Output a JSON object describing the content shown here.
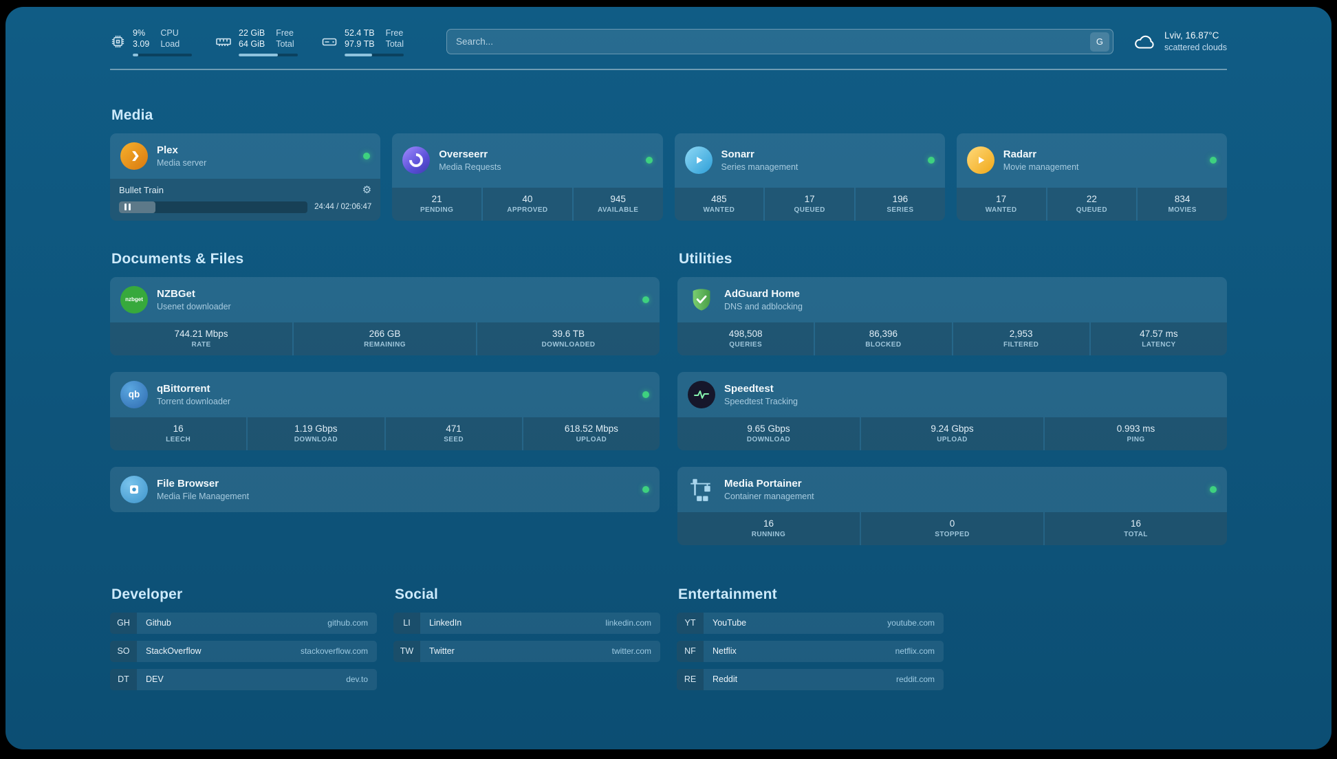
{
  "infobar": {
    "cpu": {
      "value": "9%",
      "value2": "3.09",
      "label": "CPU",
      "label2": "Load",
      "bar_percent": 9
    },
    "memory": {
      "value": "22 GiB",
      "value2": "64 GiB",
      "label": "Free",
      "label2": "Total",
      "bar_percent": 66
    },
    "disk": {
      "value": "52.4 TB",
      "value2": "97.9 TB",
      "label": "Free",
      "label2": "Total",
      "bar_percent": 47
    },
    "search": {
      "placeholder": "Search...",
      "provider_button": "G"
    },
    "weather": {
      "location": "Lviv, 16.87°C",
      "description": "scattered clouds"
    }
  },
  "sections": {
    "media": "Media",
    "documents": "Documents & Files",
    "utilities": "Utilities"
  },
  "services": {
    "plex": {
      "name": "Plex",
      "subtitle": "Media server",
      "player": {
        "title": "Bullet Train",
        "time": "24:44 / 02:06:47",
        "progress_percent": 19.5
      }
    },
    "overseerr": {
      "name": "Overseerr",
      "subtitle": "Media Requests",
      "stats": [
        {
          "value": "21",
          "label": "PENDING"
        },
        {
          "value": "40",
          "label": "APPROVED"
        },
        {
          "value": "945",
          "label": "AVAILABLE"
        }
      ]
    },
    "sonarr": {
      "name": "Sonarr",
      "subtitle": "Series management",
      "stats": [
        {
          "value": "485",
          "label": "WANTED"
        },
        {
          "value": "17",
          "label": "QUEUED"
        },
        {
          "value": "196",
          "label": "SERIES"
        }
      ]
    },
    "radarr": {
      "name": "Radarr",
      "subtitle": "Movie management",
      "stats": [
        {
          "value": "17",
          "label": "WANTED"
        },
        {
          "value": "22",
          "label": "QUEUED"
        },
        {
          "value": "834",
          "label": "MOVIES"
        }
      ]
    },
    "nzbget": {
      "name": "NZBGet",
      "subtitle": "Usenet downloader",
      "icon_text": "nzbget",
      "stats": [
        {
          "value": "744.21 Mbps",
          "label": "RATE"
        },
        {
          "value": "266 GB",
          "label": "REMAINING"
        },
        {
          "value": "39.6 TB",
          "label": "DOWNLOADED"
        }
      ]
    },
    "qbittorrent": {
      "name": "qBittorrent",
      "subtitle": "Torrent downloader",
      "icon_text": "qb",
      "stats": [
        {
          "value": "16",
          "label": "LEECH"
        },
        {
          "value": "1.19 Gbps",
          "label": "DOWNLOAD"
        },
        {
          "value": "471",
          "label": "SEED"
        },
        {
          "value": "618.52 Mbps",
          "label": "UPLOAD"
        }
      ]
    },
    "filebrowser": {
      "name": "File Browser",
      "subtitle": "Media File Management"
    },
    "adguard": {
      "name": "AdGuard Home",
      "subtitle": "DNS and adblocking",
      "stats": [
        {
          "value": "498,508",
          "label": "QUERIES"
        },
        {
          "value": "86,396",
          "label": "BLOCKED"
        },
        {
          "value": "2,953",
          "label": "FILTERED"
        },
        {
          "value": "47.57 ms",
          "label": "LATENCY"
        }
      ]
    },
    "speedtest": {
      "name": "Speedtest",
      "subtitle": "Speedtest Tracking",
      "stats": [
        {
          "value": "9.65 Gbps",
          "label": "DOWNLOAD"
        },
        {
          "value": "9.24 Gbps",
          "label": "UPLOAD"
        },
        {
          "value": "0.993 ms",
          "label": "PING"
        }
      ]
    },
    "portainer": {
      "name": "Media Portainer",
      "subtitle": "Container management",
      "stats": [
        {
          "value": "16",
          "label": "RUNNING"
        },
        {
          "value": "0",
          "label": "STOPPED"
        },
        {
          "value": "16",
          "label": "TOTAL"
        }
      ]
    }
  },
  "bookmarks": {
    "developer": {
      "title": "Developer",
      "items": [
        {
          "abbr": "GH",
          "name": "Github",
          "domain": "github.com"
        },
        {
          "abbr": "SO",
          "name": "StackOverflow",
          "domain": "stackoverflow.com"
        },
        {
          "abbr": "DT",
          "name": "DEV",
          "domain": "dev.to"
        }
      ]
    },
    "social": {
      "title": "Social",
      "items": [
        {
          "abbr": "LI",
          "name": "LinkedIn",
          "domain": "linkedin.com"
        },
        {
          "abbr": "TW",
          "name": "Twitter",
          "domain": "twitter.com"
        }
      ]
    },
    "entertainment": {
      "title": "Entertainment",
      "items": [
        {
          "abbr": "YT",
          "name": "YouTube",
          "domain": "youtube.com"
        },
        {
          "abbr": "NF",
          "name": "Netflix",
          "domain": "netflix.com"
        },
        {
          "abbr": "RE",
          "name": "Reddit",
          "domain": "reddit.com"
        }
      ]
    }
  }
}
